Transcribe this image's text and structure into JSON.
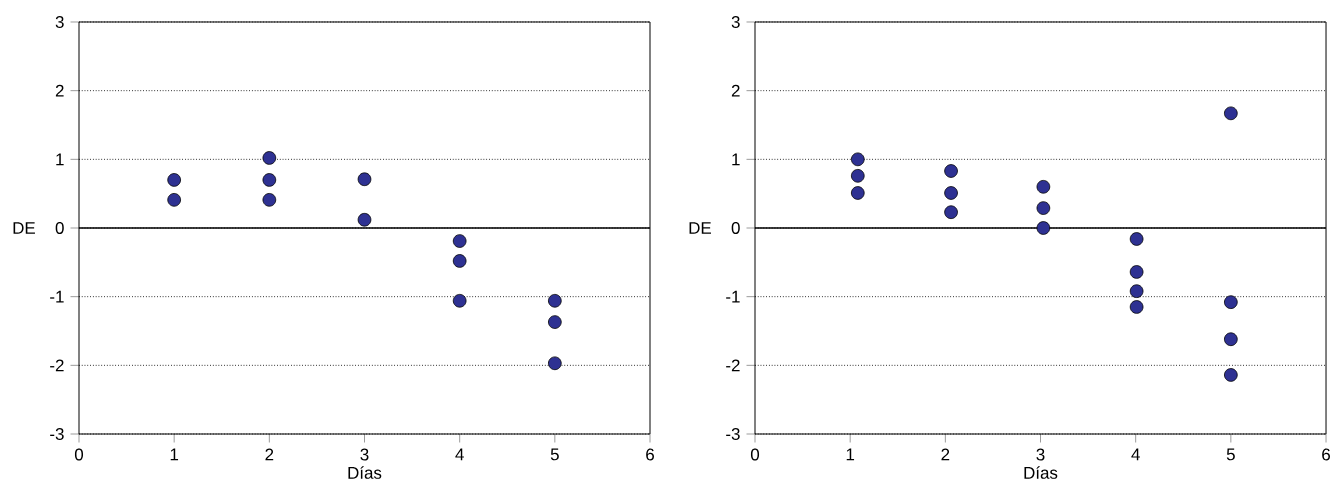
{
  "chart_data": [
    {
      "type": "scatter",
      "xlabel": "Días",
      "ylabel": "DE",
      "x": [
        1,
        1,
        2,
        2,
        2,
        3,
        3,
        4,
        4,
        4,
        5,
        5,
        5
      ],
      "values": [
        0.7,
        0.41,
        1.02,
        0.7,
        0.41,
        0.71,
        0.12,
        -0.19,
        -0.48,
        -1.06,
        -1.06,
        -1.37,
        -1.97
      ],
      "color": "#2e3192",
      "marker": "circle",
      "xlim": [
        0,
        6
      ],
      "ylim": [
        -3,
        3
      ],
      "xticks": [
        0,
        1,
        2,
        3,
        4,
        5,
        6
      ],
      "yticks": [
        -3,
        -2,
        -1,
        0,
        1,
        2,
        3
      ],
      "grid": "y",
      "ref_lines": [
        {
          "axis": "y",
          "value": 0
        }
      ]
    },
    {
      "type": "scatter",
      "xlabel": "Días",
      "ylabel": "DE",
      "x": [
        1.08,
        1.08,
        1.08,
        2.06,
        2.06,
        2.06,
        3.03,
        3.03,
        3.03,
        4.01,
        4.01,
        4.01,
        4.01,
        5.0,
        5.0,
        5.0,
        5.0
      ],
      "values": [
        1.0,
        0.76,
        0.51,
        0.83,
        0.51,
        0.23,
        0.6,
        0.29,
        0.0,
        -0.16,
        -0.64,
        -0.92,
        -1.15,
        1.67,
        -1.08,
        -1.62,
        -2.14
      ],
      "color": "#2e3192",
      "marker": "circle",
      "xlim": [
        0,
        6
      ],
      "ylim": [
        -3,
        3
      ],
      "xticks": [
        0,
        1,
        2,
        3,
        4,
        5,
        6
      ],
      "yticks": [
        -3,
        -2,
        -1,
        0,
        1,
        2,
        3
      ],
      "grid": "y",
      "ref_lines": [
        {
          "axis": "y",
          "value": 0
        }
      ]
    }
  ]
}
